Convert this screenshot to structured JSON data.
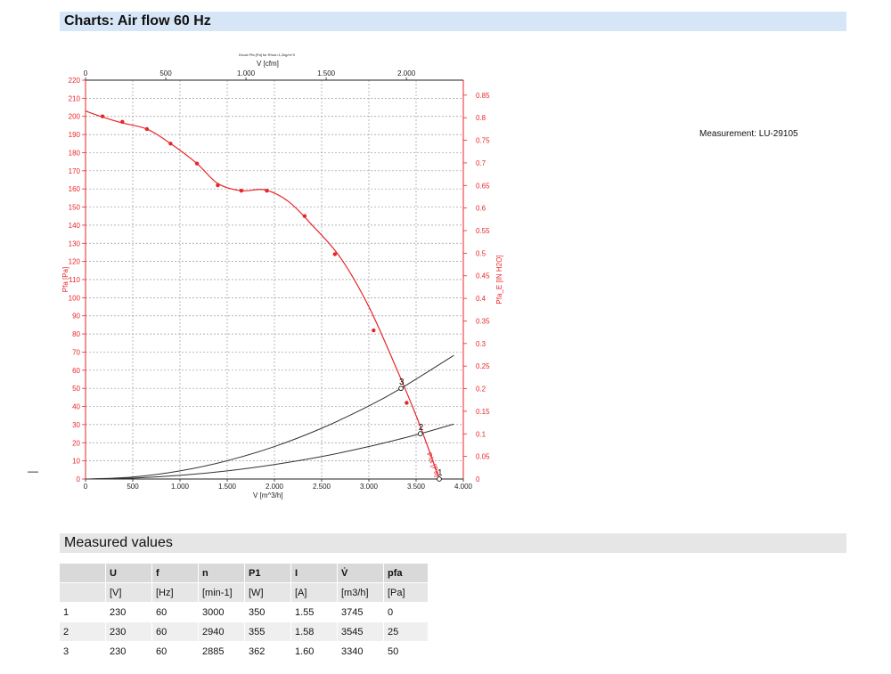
{
  "header": {
    "charts_title": "Charts: Air flow 60 Hz",
    "measured_title": "Measured values"
  },
  "measurement_note": "Measurement: LU-29105",
  "dash_mark": "—",
  "colors": {
    "red": "#e8262a",
    "black": "#333333",
    "header_blue": "#d6e6f7"
  },
  "chart_data": {
    "type": "line",
    "title": "Druck Pfa [Pa] for Rhon=1,2kg/m^3",
    "xlabel": "V [m^3/h]",
    "x2label": "V [cfm]",
    "ylabel": "Pfa [Pa]",
    "y2label": "Pfa_E [IN H2O]",
    "xlim": [
      0,
      4000
    ],
    "ylim": [
      0,
      220
    ],
    "x2lim": [
      0,
      2354.6
    ],
    "y2lim": [
      0,
      0.8832
    ],
    "x_ticks": [
      0,
      500,
      1000,
      1500,
      2000,
      2500,
      3000,
      3500,
      4000
    ],
    "x_tick_labels": [
      "0",
      "500",
      "1.000",
      "1.500",
      "2.000",
      "2.500",
      "3.000",
      "3.500",
      "4.000"
    ],
    "x2_ticks": [
      0,
      500,
      1000,
      1500,
      2000
    ],
    "x2_tick_labels": [
      "0",
      "500",
      "1.000",
      "1.500",
      "2.000"
    ],
    "y_ticks": [
      0,
      10,
      20,
      30,
      40,
      50,
      60,
      70,
      80,
      90,
      100,
      110,
      120,
      130,
      140,
      150,
      160,
      170,
      180,
      190,
      200,
      210,
      220
    ],
    "y2_ticks": [
      0.05,
      0.1,
      0.15,
      0.2,
      0.25,
      0.3,
      0.35,
      0.4,
      0.45,
      0.5,
      0.55,
      0.6,
      0.65,
      0.7,
      0.75,
      0.8,
      0.85
    ],
    "grid": true,
    "curve_label": "Pfa [Pa]",
    "series": [
      {
        "name": "Pfa [Pa]",
        "kind": "fan-curve",
        "x": [
          0,
          160,
          380,
          650,
          900,
          1180,
          1400,
          1650,
          1900,
          2150,
          2400,
          2700,
          3000,
          3300,
          3500,
          3650,
          3745
        ],
        "y": [
          203,
          200,
          196.5,
          193,
          185,
          174,
          163,
          159,
          159.5,
          153,
          140,
          122,
          95,
          60,
          35,
          14,
          0
        ],
        "markers_x": [
          180,
          390,
          650,
          900,
          1180,
          1400,
          1650,
          1920,
          2320,
          2640,
          3050,
          3400
        ],
        "markers_y": [
          200,
          197,
          193,
          185,
          174,
          162,
          159,
          159,
          145,
          124,
          82,
          42
        ]
      },
      {
        "name": "3",
        "kind": "system-curve",
        "x": [
          0,
          500,
          1000,
          1500,
          2000,
          2500,
          3000,
          3340,
          3900
        ],
        "y": [
          0,
          1.1,
          4.5,
          10.1,
          17.9,
          28,
          40.3,
          50,
          68.2
        ]
      },
      {
        "name": "2",
        "kind": "system-curve",
        "x": [
          0,
          500,
          1000,
          1500,
          2000,
          2500,
          3000,
          3545,
          3900
        ],
        "y": [
          0,
          0.5,
          2,
          4.5,
          8,
          12.4,
          17.9,
          25,
          30.3
        ]
      }
    ],
    "operating_points": [
      {
        "label": "3",
        "x": 3340,
        "y": 50
      },
      {
        "label": "2",
        "x": 3545,
        "y": 25
      },
      {
        "label": "1",
        "x": 3745,
        "y": 0
      }
    ]
  },
  "table": {
    "headers": [
      "",
      "U",
      "f",
      "n",
      "P1",
      "I",
      "V̇",
      "pfa"
    ],
    "units": [
      "",
      "[V]",
      "[Hz]",
      "[min-1]",
      "[W]",
      "[A]",
      "[m3/h]",
      "[Pa]"
    ],
    "rows": [
      [
        "1",
        "230",
        "60",
        "3000",
        "350",
        "1.55",
        "3745",
        "0"
      ],
      [
        "2",
        "230",
        "60",
        "2940",
        "355",
        "1.58",
        "3545",
        "25"
      ],
      [
        "3",
        "230",
        "60",
        "2885",
        "362",
        "1.60",
        "3340",
        "50"
      ]
    ]
  }
}
